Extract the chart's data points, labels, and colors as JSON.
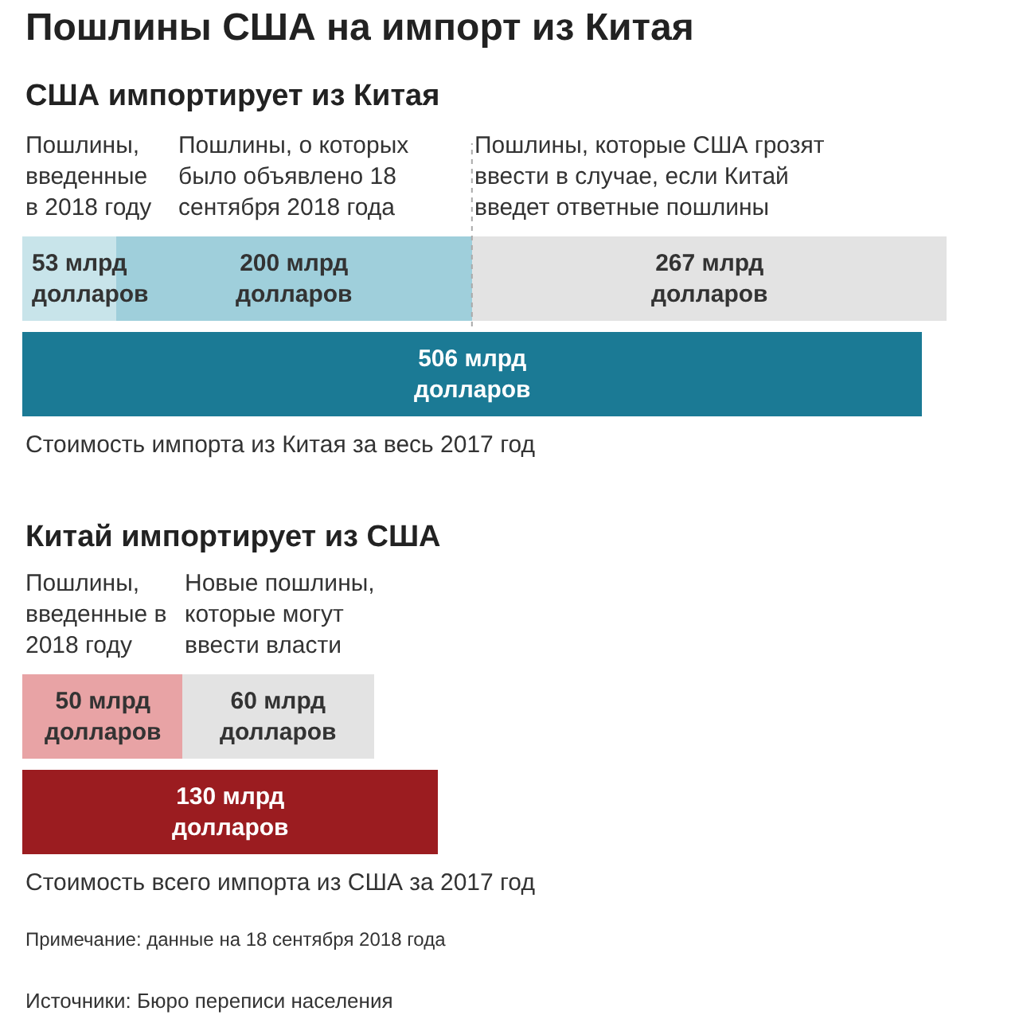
{
  "chart_data": [
    {
      "type": "bar",
      "orientation": "horizontal",
      "stacked": true,
      "title": "Пошлины США на импорт из Китая",
      "subtitle": "США импортирует из Китая",
      "categories": [
        null,
        null
      ],
      "tick_labels": false,
      "series": [
        {
          "color": "#c8e4ea",
          "values": [
            53,
            null
          ],
          "value_labels": [
            "53 млрд долларов",
            null
          ]
        },
        {
          "color": "#9fcfdb",
          "values": [
            200,
            null
          ],
          "value_labels": [
            "200 млрд долларов",
            null
          ]
        },
        {
          "color": "#e3e3e3",
          "values": [
            267,
            null
          ],
          "value_labels": [
            "267 млрд долларов",
            null
          ]
        },
        {
          "color": "#1b7a95",
          "values": [
            null,
            506
          ],
          "value_labels": [
            null,
            "506 млрд долларов"
          ]
        }
      ],
      "ref_lines": [
        {
          "axis": "x",
          "value": 253,
          "color": "#aaaaaa",
          "line_style": "dotted"
        }
      ],
      "annotations": [
        "Пошлины,\nвведенные\nв 2018 году",
        "Пошлины, о которых\nбыло объявлено 18\nсентября 2018 года",
        "Пошлины, которые США грозят\nввести в случае, если Китай\nвведет ответные пошлины",
        "Стоимость импорта из Китая за весь 2017 год"
      ]
    },
    {
      "type": "bar",
      "orientation": "horizontal",
      "stacked": true,
      "title": "Китай импортирует из США",
      "categories": [
        null,
        null
      ],
      "tick_labels": false,
      "series": [
        {
          "color": "#e8a3a5",
          "values": [
            50,
            null
          ],
          "value_labels": [
            "50 млрд долларов",
            null
          ]
        },
        {
          "color": "#e3e3e3",
          "values": [
            60,
            null
          ],
          "value_labels": [
            "60 млрд долларов",
            null
          ]
        },
        {
          "color": "#9b1c20",
          "values": [
            null,
            130
          ],
          "value_labels": [
            null,
            "130 млрд долларов"
          ]
        }
      ],
      "annotations": [
        "Пошлины,\nвведенные в\n2018 году",
        "Новые пошлины,\nкоторые могут\nввести власти",
        "Стоимость всего импорта из США за 2017 год",
        "Примечание: данные на 18 сентября 2018 года",
        "Источники: Бюро переписи населения"
      ]
    }
  ]
}
